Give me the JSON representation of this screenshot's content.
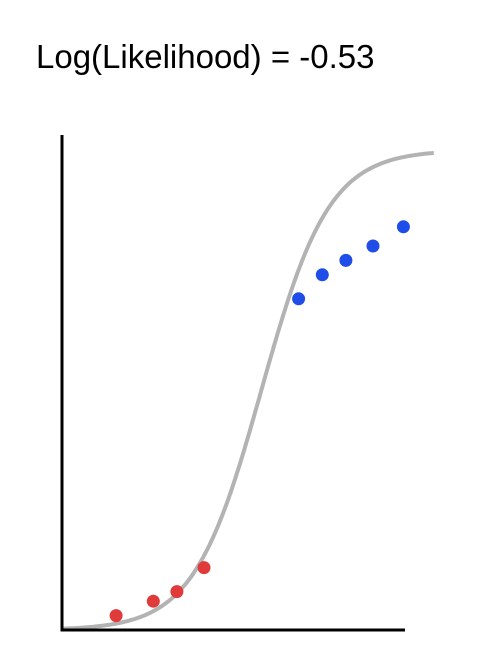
{
  "chart_data": {
    "type": "scatter",
    "title": "Log(Likelihood) = -0.53",
    "xlabel": "",
    "ylabel": "",
    "xlim": [
      0,
      1
    ],
    "ylim": [
      0,
      1
    ],
    "grid": false,
    "logistic_curve": {
      "color": "#b3b3b3",
      "midpoint": 0.59,
      "steepness": 10
    },
    "series": [
      {
        "color": "#e03a3a",
        "class_value": 0,
        "x": [
          0.16,
          0.27,
          0.34,
          0.42
        ],
        "y": [
          0.03,
          0.06,
          0.08,
          0.13
        ]
      },
      {
        "color": "#1f4de8",
        "class_value": 1,
        "x": [
          0.7,
          0.77,
          0.84,
          0.92,
          1.01
        ],
        "y": [
          0.69,
          0.74,
          0.77,
          0.8,
          0.84
        ]
      }
    ]
  }
}
